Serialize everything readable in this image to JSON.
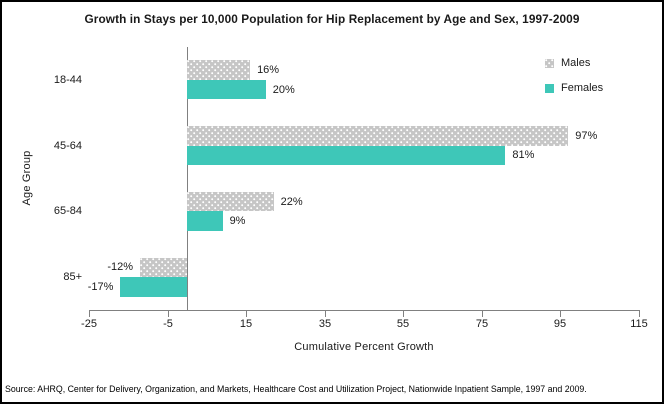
{
  "title": "Growth in Stays per 10,000 Population for Hip Replacement by Age and Sex, 1997-2009",
  "source_note": "Source: AHRQ, Center for Delivery, Organization, and Markets, Healthcare Cost and Utilization Project, Nationwide Inpatient Sample, 1997 and 2009.",
  "chart_data": {
    "type": "bar",
    "orientation": "horizontal",
    "title": "Growth in Stays per 10,000 Population for Hip Replacement by Age and Sex, 1997-2009",
    "categories": [
      "18-44",
      "45-64",
      "65-84",
      "85+"
    ],
    "series": [
      {
        "name": "Males",
        "values": [
          16,
          97,
          22,
          -12
        ],
        "labels": [
          "16%",
          "97%",
          "22%",
          "-12%"
        ],
        "color": "#C6C6C6",
        "pattern": "dotted"
      },
      {
        "name": "Females",
        "values": [
          20,
          81,
          9,
          -17
        ],
        "labels": [
          "20%",
          "81%",
          "9%",
          "-17%"
        ],
        "color": "#3EC7B8",
        "pattern": "solid"
      }
    ],
    "xlabel": "Cumulative Percent Growth",
    "ylabel": "Age Group",
    "xlim": [
      -25,
      115
    ],
    "xticks": [
      -25,
      -5,
      15,
      35,
      55,
      75,
      95,
      115
    ],
    "legend_position": "top-right",
    "grid": false,
    "axis_color": "#808080",
    "text_color": "#1A1A1A"
  }
}
